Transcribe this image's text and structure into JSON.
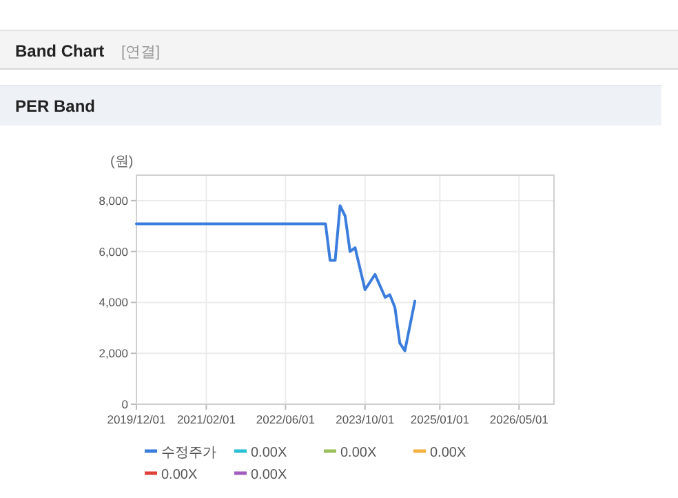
{
  "chart_data": {
    "type": "line",
    "title": "PER Band",
    "annotations": [
      "Band Chart",
      "[연결]"
    ],
    "ylabel": "(원)",
    "x": [
      "2019-12",
      "2023-02",
      "2023-03",
      "2023-04",
      "2023-05",
      "2023-06",
      "2023-07",
      "2023-08",
      "2023-10",
      "2023-12",
      "2024-02",
      "2024-03",
      "2024-04",
      "2024-05",
      "2024-06",
      "2024-08"
    ],
    "series": [
      {
        "name": "수정주가",
        "color": "#3b7ddd",
        "values": [
          7090,
          7090,
          5650,
          5650,
          7800,
          7400,
          6000,
          6150,
          4500,
          5100,
          4200,
          4300,
          3800,
          2400,
          2100,
          4050
        ]
      },
      {
        "name": "0.00X",
        "color": "#2bbfd6",
        "values": [
          null,
          null,
          null,
          null,
          null,
          null,
          null,
          null,
          null,
          null,
          null,
          null,
          null,
          null,
          null,
          null
        ]
      },
      {
        "name": "0.00X",
        "color": "#99c05a",
        "values": [
          null,
          null,
          null,
          null,
          null,
          null,
          null,
          null,
          null,
          null,
          null,
          null,
          null,
          null,
          null,
          null
        ]
      },
      {
        "name": "0.00X",
        "color": "#f5b041",
        "values": [
          null,
          null,
          null,
          null,
          null,
          null,
          null,
          null,
          null,
          null,
          null,
          null,
          null,
          null,
          null,
          null
        ]
      },
      {
        "name": "0.00X",
        "color": "#e0403a",
        "values": [
          null,
          null,
          null,
          null,
          null,
          null,
          null,
          null,
          null,
          null,
          null,
          null,
          null,
          null,
          null,
          null
        ]
      },
      {
        "name": "0.00X",
        "color": "#a05cc0",
        "values": [
          null,
          null,
          null,
          null,
          null,
          null,
          null,
          null,
          null,
          null,
          null,
          null,
          null,
          null,
          null,
          null
        ]
      }
    ],
    "xlim": [
      "2019-12-01",
      "2026-12-01"
    ],
    "xticks": [
      {
        "value": "2019-12-01",
        "label": "2019/12/01"
      },
      {
        "value": "2021-02-01",
        "label": "2021/02/01"
      },
      {
        "value": "2022-06-01",
        "label": "2022/06/01"
      },
      {
        "value": "2023-10-01",
        "label": "2023/10/01"
      },
      {
        "value": "2025-01-01",
        "label": "2025/01/01"
      },
      {
        "value": "2026-05-01",
        "label": "2026/05/01"
      }
    ],
    "ylim": [
      0,
      9000
    ],
    "yticks": [
      0,
      {
        "value": 2000,
        "label": "2,000"
      },
      {
        "value": 4000,
        "label": "4,000"
      },
      {
        "value": 6000,
        "label": "6,000"
      },
      {
        "value": 8000,
        "label": "8,000"
      }
    ],
    "grid": true,
    "legend": "bottom",
    "marker": "none",
    "line_style": "solid"
  }
}
